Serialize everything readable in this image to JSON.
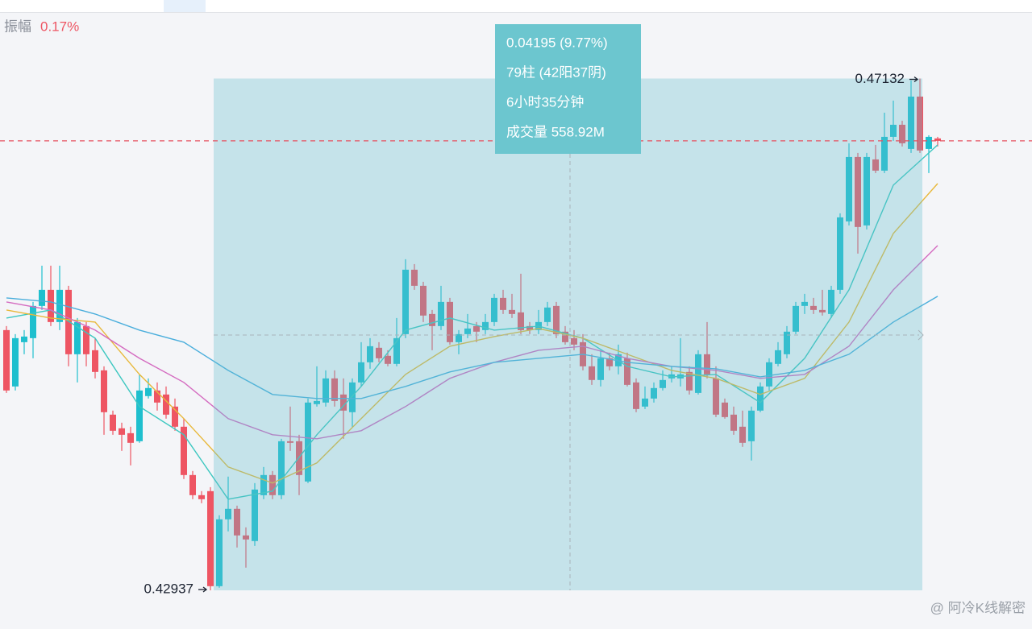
{
  "header": {
    "label": "振幅",
    "value": "0.17%"
  },
  "measure": [
    "0.04195 (9.77%)",
    "79柱 (42阳37阴)",
    "6小时35分钟",
    "成交量 558.92M"
  ],
  "watermark": "@ 阿冷K线解密",
  "chart_data": {
    "type": "candlestick",
    "up_color": "#1fbfce",
    "down_color": "#ee5563",
    "ylim": [
      0.4262,
      0.4767
    ],
    "annotations": {
      "high": 0.47132,
      "low": 0.42937
    },
    "last_price_line": true,
    "ohlc": [
      [
        0.4507,
        0.45103,
        0.44555,
        0.44575
      ],
      [
        0.44608,
        0.45037,
        0.44575,
        0.45004
      ],
      [
        0.44971,
        0.4507,
        0.44872,
        0.45017
      ],
      [
        0.45004,
        0.45301,
        0.44839,
        0.45268
      ],
      [
        0.45268,
        0.45598,
        0.45235,
        0.454
      ],
      [
        0.454,
        0.45598,
        0.45103,
        0.45136
      ],
      [
        0.45136,
        0.45598,
        0.4507,
        0.454
      ],
      [
        0.454,
        0.45433,
        0.44773,
        0.44872
      ],
      [
        0.44872,
        0.45169,
        0.44641,
        0.45136
      ],
      [
        0.45103,
        0.45136,
        0.44773,
        0.44872
      ],
      [
        0.44905,
        0.45004,
        0.44674,
        0.44727
      ],
      [
        0.4474,
        0.44773,
        0.44212,
        0.44397
      ],
      [
        0.44377,
        0.4441,
        0.44212,
        0.44245
      ],
      [
        0.44265,
        0.44311,
        0.4408,
        0.44212
      ],
      [
        0.44225,
        0.44278,
        0.43961,
        0.44146
      ],
      [
        0.44159,
        0.44707,
        0.44146,
        0.44575
      ],
      [
        0.44529,
        0.44674,
        0.44509,
        0.44595
      ],
      [
        0.44575,
        0.44641,
        0.4441,
        0.44476
      ],
      [
        0.44542,
        0.44608,
        0.44344,
        0.44377
      ],
      [
        0.44443,
        0.44509,
        0.44245,
        0.44278
      ],
      [
        0.44278,
        0.44344,
        0.43849,
        0.43882
      ],
      [
        0.43882,
        0.43915,
        0.43684,
        0.43717
      ],
      [
        0.43717,
        0.4375,
        0.43651,
        0.43684
      ],
      [
        0.4375,
        0.43783,
        0.42937,
        0.42971
      ],
      [
        0.42971,
        0.43552,
        0.42958,
        0.43519
      ],
      [
        0.43519,
        0.43869,
        0.4342,
        0.43605
      ],
      [
        0.43605,
        0.43631,
        0.43288,
        0.43387
      ],
      [
        0.43387,
        0.43453,
        0.43123,
        0.43354
      ],
      [
        0.43341,
        0.43816,
        0.43301,
        0.43763
      ],
      [
        0.43717,
        0.43948,
        0.43684,
        0.43882
      ],
      [
        0.43882,
        0.43915,
        0.43684,
        0.43717
      ],
      [
        0.43717,
        0.44179,
        0.43684,
        0.44159
      ],
      [
        0.44159,
        0.44443,
        0.4408,
        0.44146
      ],
      [
        0.44159,
        0.44212,
        0.43717,
        0.43882
      ],
      [
        0.43829,
        0.44509,
        0.43816,
        0.44476
      ],
      [
        0.44463,
        0.44773,
        0.44443,
        0.44489
      ],
      [
        0.44476,
        0.4474,
        0.44443,
        0.44674
      ],
      [
        0.44674,
        0.4474,
        0.44443,
        0.44489
      ],
      [
        0.44542,
        0.44674,
        0.44179,
        0.4441
      ],
      [
        0.44397,
        0.44674,
        0.44278,
        0.44641
      ],
      [
        0.44641,
        0.44971,
        0.44608,
        0.44806
      ],
      [
        0.44806,
        0.45004,
        0.44753,
        0.44938
      ],
      [
        0.44925,
        0.44971,
        0.44806,
        0.44839
      ],
      [
        0.44859,
        0.44905,
        0.44773,
        0.44793
      ],
      [
        0.44793,
        0.45169,
        0.44773,
        0.45004
      ],
      [
        0.45037,
        0.45651,
        0.45004,
        0.45565
      ],
      [
        0.45565,
        0.45611,
        0.454,
        0.45433
      ],
      [
        0.45433,
        0.45466,
        0.45136,
        0.45189
      ],
      [
        0.45202,
        0.45235,
        0.44905,
        0.45103
      ],
      [
        0.45103,
        0.45433,
        0.4507,
        0.45301
      ],
      [
        0.45301,
        0.45334,
        0.44951,
        0.44971
      ],
      [
        0.44971,
        0.4507,
        0.44872,
        0.45037
      ],
      [
        0.45037,
        0.45202,
        0.45004,
        0.45083
      ],
      [
        0.45103,
        0.45136,
        0.44971,
        0.45057
      ],
      [
        0.4507,
        0.45202,
        0.45037,
        0.45136
      ],
      [
        0.45136,
        0.45367,
        0.45103,
        0.45334
      ],
      [
        0.45334,
        0.454,
        0.45202,
        0.45235
      ],
      [
        0.45235,
        0.45367,
        0.45169,
        0.45202
      ],
      [
        0.45215,
        0.45532,
        0.45037,
        0.4507
      ],
      [
        0.45103,
        0.45136,
        0.45037,
        0.4507
      ],
      [
        0.4507,
        0.45235,
        0.45037,
        0.45136
      ],
      [
        0.45136,
        0.45301,
        0.45103,
        0.45255
      ],
      [
        0.45268,
        0.45301,
        0.45004,
        0.45037
      ],
      [
        0.45057,
        0.45103,
        0.44951,
        0.44971
      ],
      [
        0.45004,
        0.4507,
        0.44905,
        0.44951
      ],
      [
        0.44971,
        0.45037,
        0.4474,
        0.44773
      ],
      [
        0.44773,
        0.44872,
        0.44621,
        0.44661
      ],
      [
        0.44661,
        0.44905,
        0.44608,
        0.44839
      ],
      [
        0.44839,
        0.44885,
        0.4474,
        0.44773
      ],
      [
        0.44773,
        0.44951,
        0.44707,
        0.44872
      ],
      [
        0.44839,
        0.44885,
        0.44608,
        0.44621
      ],
      [
        0.44641,
        0.44674,
        0.44397,
        0.44423
      ],
      [
        0.44443,
        0.44608,
        0.44423,
        0.44509
      ],
      [
        0.44509,
        0.44641,
        0.44476,
        0.44595
      ],
      [
        0.44595,
        0.4474,
        0.44575,
        0.44661
      ],
      [
        0.44674,
        0.44773,
        0.44641,
        0.44707
      ],
      [
        0.44674,
        0.45004,
        0.44608,
        0.44707
      ],
      [
        0.44727,
        0.44773,
        0.44542,
        0.44575
      ],
      [
        0.44555,
        0.44905,
        0.44542,
        0.44872
      ],
      [
        0.44872,
        0.45136,
        0.44674,
        0.44707
      ],
      [
        0.44674,
        0.44773,
        0.44357,
        0.44377
      ],
      [
        0.44476,
        0.44509,
        0.44344,
        0.44357
      ],
      [
        0.44377,
        0.44443,
        0.44212,
        0.44245
      ],
      [
        0.44278,
        0.4441,
        0.44113,
        0.44146
      ],
      [
        0.44159,
        0.44443,
        0.44001,
        0.4441
      ],
      [
        0.4441,
        0.44641,
        0.44397,
        0.44608
      ],
      [
        0.44608,
        0.44839,
        0.44575,
        0.44806
      ],
      [
        0.44793,
        0.44971,
        0.44773,
        0.44905
      ],
      [
        0.44872,
        0.45103,
        0.44839,
        0.45057
      ],
      [
        0.45057,
        0.45301,
        0.45037,
        0.45268
      ],
      [
        0.45268,
        0.45367,
        0.45202,
        0.45301
      ],
      [
        0.45268,
        0.45334,
        0.45202,
        0.45235
      ],
      [
        0.45235,
        0.454,
        0.45189,
        0.45215
      ],
      [
        0.45202,
        0.45433,
        0.45169,
        0.454
      ],
      [
        0.454,
        0.46027,
        0.45367,
        0.45994
      ],
      [
        0.45961,
        0.46601,
        0.45928,
        0.46489
      ],
      [
        0.46489,
        0.46522,
        0.45697,
        0.45915
      ],
      [
        0.45928,
        0.46522,
        0.45895,
        0.46489
      ],
      [
        0.46469,
        0.46588,
        0.46357,
        0.46377
      ],
      [
        0.46377,
        0.46852,
        0.46357,
        0.46654
      ],
      [
        0.46654,
        0.46951,
        0.46621,
        0.46753
      ],
      [
        0.46753,
        0.46786,
        0.46575,
        0.46601
      ],
      [
        0.46555,
        0.47116,
        0.46522,
        0.46984
      ],
      [
        0.46984,
        0.47132,
        0.46522,
        0.46542
      ],
      [
        0.46555,
        0.46667,
        0.46357,
        0.46654
      ],
      [
        0.46641,
        0.46654,
        0.46575,
        0.46621
      ]
    ],
    "series": [
      {
        "color": "#3cc7c0",
        "x": [
          0,
          5,
          10,
          15,
          20,
          25,
          30,
          35,
          40,
          45,
          50,
          55,
          60,
          65,
          70,
          75,
          80,
          85,
          90,
          95,
          100,
          105
        ],
        "values": [
          0.45169,
          0.45235,
          0.45004,
          0.44443,
          0.44212,
          0.43684,
          0.4375,
          0.44212,
          0.44608,
          0.4507,
          0.45169,
          0.4507,
          0.45103,
          0.45004,
          0.44773,
          0.44687,
          0.44707,
          0.44476,
          0.44839,
          0.454,
          0.46258,
          0.46588
        ]
      },
      {
        "color": "#e8b83a",
        "x": [
          0,
          5,
          10,
          15,
          20,
          25,
          30,
          35,
          40,
          45,
          50,
          55,
          60,
          65,
          70,
          75,
          80,
          85,
          90,
          95,
          100,
          105
        ],
        "values": [
          0.45235,
          0.45169,
          0.45136,
          0.44707,
          0.44344,
          0.43948,
          0.43816,
          0.43981,
          0.44344,
          0.44707,
          0.44938,
          0.45017,
          0.45083,
          0.45004,
          0.44872,
          0.4474,
          0.44674,
          0.44542,
          0.44674,
          0.45136,
          0.45862,
          0.46271
        ]
      },
      {
        "color": "#d46bc0",
        "x": [
          0,
          5,
          10,
          15,
          20,
          25,
          30,
          35,
          40,
          45,
          50,
          55,
          60,
          65,
          70,
          75,
          80,
          85,
          90,
          95,
          100,
          105
        ],
        "values": [
          0.45301,
          0.45235,
          0.4507,
          0.44839,
          0.44641,
          0.44344,
          0.44212,
          0.44179,
          0.44245,
          0.44443,
          0.44674,
          0.44806,
          0.44905,
          0.44938,
          0.44839,
          0.44773,
          0.4474,
          0.44674,
          0.44707,
          0.44938,
          0.454,
          0.45763
        ]
      },
      {
        "color": "#4aaedc",
        "x": [
          0,
          5,
          10,
          15,
          20,
          25,
          30,
          35,
          40,
          45,
          50,
          55,
          60,
          65,
          70,
          75,
          80,
          85,
          90,
          95,
          100,
          105
        ],
        "values": [
          0.45334,
          0.45301,
          0.45202,
          0.4507,
          0.44971,
          0.4474,
          0.44542,
          0.44509,
          0.44509,
          0.44608,
          0.44727,
          0.44806,
          0.44839,
          0.44872,
          0.44806,
          0.44773,
          0.44753,
          0.44687,
          0.4474,
          0.44872,
          0.45136,
          0.45347
        ]
      }
    ]
  }
}
